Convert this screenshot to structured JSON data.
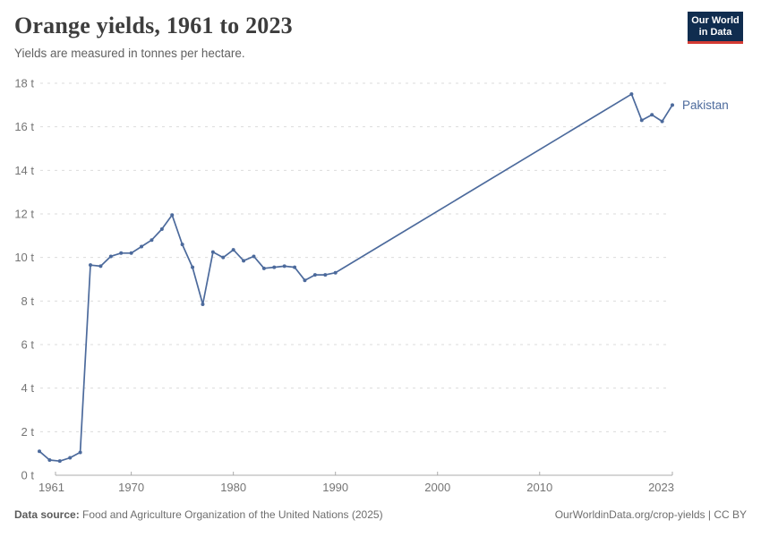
{
  "header": {
    "title": "Orange yields, 1961 to 2023",
    "subtitle": "Yields are measured in tonnes per hectare."
  },
  "logo": {
    "line1": "Our World",
    "line2": "in Data",
    "bg_color": "#102d4f",
    "accent_color": "#d43b33"
  },
  "chart_data": {
    "type": "line",
    "title": "Orange yields, 1961 to 2023",
    "subtitle": "Yields are measured in tonnes per hectare.",
    "x_axis": {
      "range": [
        1961,
        2023
      ],
      "ticks": [
        1961,
        1970,
        1980,
        1990,
        2000,
        2010,
        2023
      ],
      "grid": false
    },
    "y_axis": {
      "range": [
        0,
        18
      ],
      "ticks": [
        0,
        2,
        4,
        6,
        8,
        10,
        12,
        14,
        16,
        18
      ],
      "tick_suffix": " t",
      "grid": true,
      "grid_style": "dashed"
    },
    "legend_position": "end-of-line-label",
    "series": [
      {
        "name": "Pakistan",
        "color": "#4C6A9C",
        "points": [
          [
            1961,
            1.1
          ],
          [
            1962,
            0.7
          ],
          [
            1963,
            0.65
          ],
          [
            1964,
            0.8
          ],
          [
            1965,
            1.05
          ],
          [
            1966,
            9.65
          ],
          [
            1967,
            9.6
          ],
          [
            1968,
            10.05
          ],
          [
            1969,
            10.2
          ],
          [
            1970,
            10.2
          ],
          [
            1971,
            10.5
          ],
          [
            1972,
            10.8
          ],
          [
            1973,
            11.3
          ],
          [
            1974,
            11.95
          ],
          [
            1975,
            10.6
          ],
          [
            1976,
            9.55
          ],
          [
            1977,
            7.85
          ],
          [
            1978,
            10.25
          ],
          [
            1979,
            10.0
          ],
          [
            1980,
            10.35
          ],
          [
            1981,
            9.85
          ],
          [
            1982,
            10.05
          ],
          [
            1983,
            9.5
          ],
          [
            1984,
            9.55
          ],
          [
            1985,
            9.6
          ],
          [
            1986,
            9.55
          ],
          [
            1987,
            8.95
          ],
          [
            1988,
            9.2
          ],
          [
            1989,
            9.2
          ],
          [
            1990,
            9.3
          ],
          [
            2019,
            17.5
          ],
          [
            2020,
            16.3
          ],
          [
            2021,
            16.55
          ],
          [
            2022,
            16.25
          ],
          [
            2023,
            17.0
          ]
        ]
      }
    ],
    "colors": {
      "line": "#4C6A9C",
      "grid": "#dbdbdb",
      "axis": "#ababab",
      "tick_text": "#757575"
    }
  },
  "footer": {
    "source_label": "Data source:",
    "source_text": " Food and Agriculture Organization of the United Nations (2025)",
    "credit": "OurWorldinData.org/crop-yields | CC BY"
  }
}
